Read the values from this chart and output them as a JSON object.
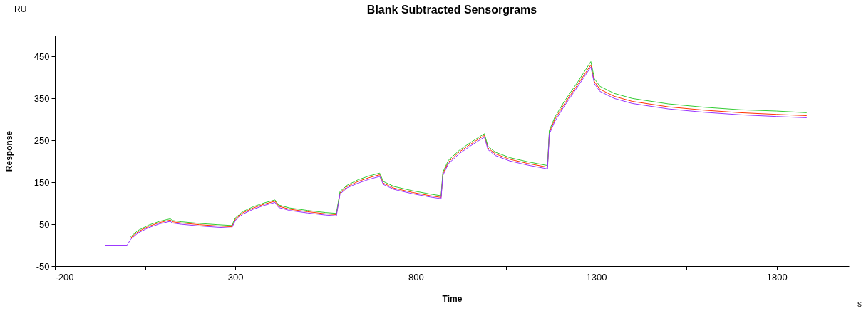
{
  "chart_data": {
    "type": "line",
    "title": "Blank Subtracted Sensorgrams",
    "xlabel": "Time",
    "ylabel": "Response",
    "annotations": [
      "RU",
      "s"
    ],
    "xlim": [
      -200,
      2000
    ],
    "ylim": [
      -50,
      500
    ],
    "xticks": [
      -200,
      {
        "value": 50,
        "label": null
      },
      300,
      {
        "value": 550,
        "label": null
      },
      800,
      {
        "value": 1050,
        "label": null
      },
      1300,
      {
        "value": 1550,
        "label": null
      },
      1800
    ],
    "yticks": [
      -50,
      {
        "value": 0,
        "label": null
      },
      50,
      {
        "value": 100,
        "label": null
      },
      150,
      {
        "value": 200,
        "label": null
      },
      250,
      {
        "value": 300,
        "label": null
      },
      350,
      {
        "value": 400,
        "label": null
      },
      450,
      {
        "value": 500,
        "label": null
      }
    ],
    "grid": false,
    "line_style": "solid",
    "x": [
      -60,
      0,
      10,
      30,
      60,
      90,
      120,
      125,
      150,
      200,
      250,
      290,
      300,
      320,
      350,
      380,
      410,
      420,
      450,
      500,
      550,
      580,
      590,
      610,
      640,
      670,
      700,
      710,
      740,
      790,
      840,
      870,
      875,
      890,
      920,
      950,
      990,
      1000,
      1020,
      1060,
      1110,
      1165,
      1170,
      1185,
      1210,
      1250,
      1285,
      1295,
      1310,
      1350,
      1400,
      1500,
      1600,
      1700,
      1800,
      1883
    ],
    "series": [
      {
        "color": "#ff3300",
        "values": [
          null,
          null,
          17,
          32,
          45,
          54,
          60,
          56,
          53,
          49,
          46,
          44,
          62,
          77,
          89,
          98,
          105,
          93,
          86,
          80,
          75,
          73,
          125,
          140,
          152,
          161,
          168,
          148,
          136,
          126,
          118,
          114,
          170,
          198,
          222,
          240,
          262,
          232,
          218,
          205,
          195,
          186,
          270,
          300,
          335,
          385,
          430,
          390,
          372,
          355,
          343,
          330,
          322,
          316,
          312,
          309
        ]
      },
      {
        "color": "#33cc33",
        "values": [
          null,
          null,
          20,
          35,
          48,
          57,
          63,
          59,
          56,
          52,
          49,
          47,
          65,
          80,
          92,
          101,
          108,
          96,
          89,
          83,
          78,
          76,
          128,
          143,
          156,
          165,
          172,
          152,
          140,
          130,
          122,
          118,
          174,
          202,
          226,
          244,
          266,
          236,
          222,
          209,
          199,
          190,
          274,
          305,
          341,
          391,
          438,
          397,
          379,
          362,
          350,
          337,
          329,
          323,
          320,
          316
        ]
      },
      {
        "color": "#9933ff",
        "values": [
          0,
          0,
          14,
          29,
          42,
          51,
          57,
          53,
          50,
          46,
          43,
          41,
          59,
          74,
          86,
          95,
          102,
          90,
          83,
          77,
          72,
          70,
          122,
          137,
          148,
          157,
          164,
          145,
          133,
          123,
          115,
          111,
          166,
          194,
          218,
          236,
          258,
          228,
          214,
          201,
          191,
          182,
          265,
          295,
          330,
          380,
          425,
          385,
          367,
          350,
          338,
          325,
          317,
          311,
          307,
          304
        ]
      }
    ]
  }
}
